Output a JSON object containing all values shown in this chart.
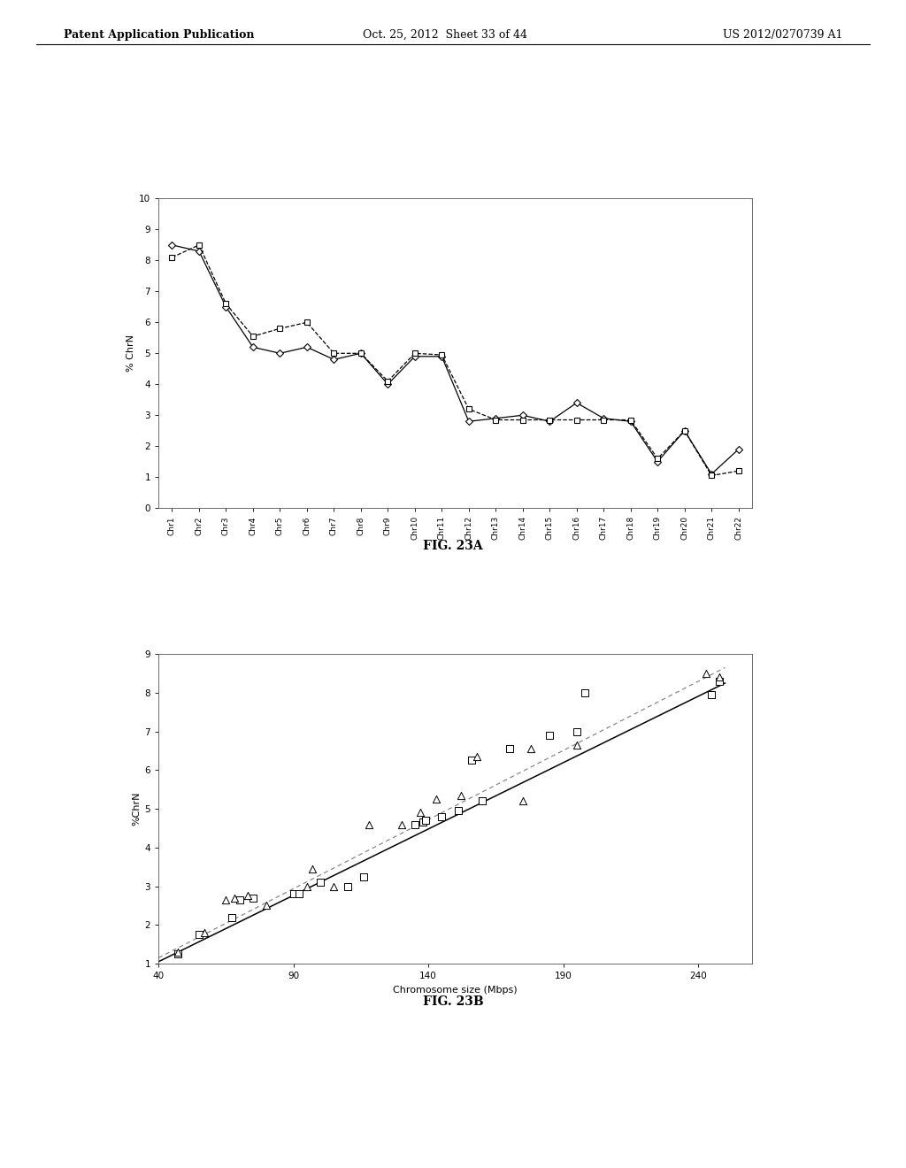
{
  "header_left": "Patent Application Publication",
  "header_mid": "Oct. 25, 2012  Sheet 33 of 44",
  "header_right": "US 2012/0270739 A1",
  "fig23a": {
    "chromosomes": [
      "Chr1",
      "Chr2",
      "Chr3",
      "Chr4",
      "Chr5",
      "Chr6",
      "Chr7",
      "Chr8",
      "Chr9",
      "Chr10",
      "Chr11",
      "Chr12",
      "Chr13",
      "Chr14",
      "Chr15",
      "Chr16",
      "Chr17",
      "Chr18",
      "Chr19",
      "Chr20",
      "Chr21",
      "Chr22"
    ],
    "series1_diamond": [
      8.5,
      8.3,
      6.5,
      5.2,
      5.0,
      5.2,
      4.8,
      5.0,
      4.0,
      4.9,
      4.9,
      2.8,
      2.9,
      3.0,
      2.8,
      3.4,
      2.9,
      2.8,
      1.5,
      2.5,
      1.1,
      1.9
    ],
    "series2_square": [
      8.1,
      8.5,
      6.6,
      5.55,
      5.8,
      6.0,
      5.0,
      5.0,
      4.1,
      5.0,
      4.95,
      3.2,
      2.85,
      2.85,
      2.85,
      2.85,
      2.85,
      2.85,
      1.6,
      2.5,
      1.05,
      1.2
    ],
    "ylabel": "% ChrN",
    "ylim": [
      0,
      10
    ],
    "yticks": [
      0,
      1,
      2,
      3,
      4,
      5,
      6,
      7,
      8,
      9,
      10
    ],
    "caption": "FIG. 23A"
  },
  "fig23b": {
    "squares_x": [
      47,
      55,
      67,
      70,
      75,
      90,
      92,
      100,
      110,
      116,
      135,
      138,
      139,
      145,
      151,
      156,
      160,
      170,
      185,
      195,
      198,
      245,
      248
    ],
    "squares_y": [
      1.25,
      1.75,
      2.2,
      2.65,
      2.7,
      2.8,
      2.8,
      3.1,
      3.0,
      3.25,
      4.6,
      4.65,
      4.7,
      4.8,
      4.95,
      6.25,
      5.2,
      6.55,
      6.9,
      7.0,
      8.0,
      7.95,
      8.3
    ],
    "triangles_x": [
      47,
      57,
      65,
      68,
      73,
      80,
      95,
      97,
      105,
      118,
      130,
      137,
      143,
      152,
      158,
      175,
      178,
      195,
      243,
      248
    ],
    "triangles_y": [
      1.3,
      1.8,
      2.65,
      2.7,
      2.75,
      2.5,
      3.0,
      3.45,
      3.0,
      4.6,
      4.6,
      4.9,
      5.25,
      5.35,
      6.35,
      5.2,
      6.55,
      6.65,
      8.5,
      8.4
    ],
    "line1_x": [
      40,
      250
    ],
    "line1_y": [
      1.05,
      8.25
    ],
    "line2_x": [
      40,
      250
    ],
    "line2_y": [
      1.15,
      8.65
    ],
    "ylabel": "%ChrN",
    "xlabel": "Chromosome size (Mbps)",
    "ylim": [
      1,
      9
    ],
    "yticks": [
      1,
      2,
      3,
      4,
      5,
      6,
      7,
      8,
      9
    ],
    "xlim": [
      40,
      260
    ],
    "xticks": [
      40,
      90,
      140,
      190,
      240
    ],
    "caption": "FIG. 23B"
  },
  "bg_color": "#ffffff",
  "axes_color": "#000000",
  "page_width": 10.24,
  "page_height": 13.2
}
